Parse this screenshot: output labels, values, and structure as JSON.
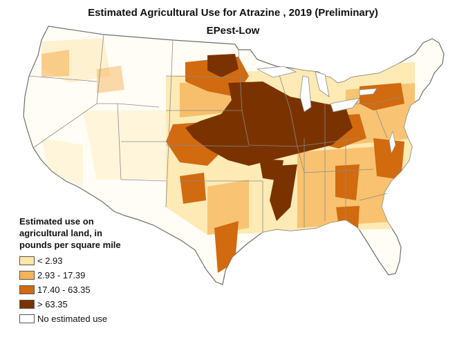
{
  "title": "Estimated Agricultural Use for Atrazine , 2019 (Preliminary)",
  "subtitle": "EPest-Low",
  "legend": {
    "title_lines": [
      "Estimated use on",
      "agricultural land, in",
      "pounds per square mile"
    ],
    "items": [
      {
        "label": "< 2.93",
        "color": "#fde6a8"
      },
      {
        "label": "2.93 - 17.39",
        "color": "#f5b459"
      },
      {
        "label": "17.40 - 63.35",
        "color": "#d26a10"
      },
      {
        "label": "> 63.35",
        "color": "#7a3300"
      },
      {
        "label": "No estimated use",
        "color": "#ffffff"
      }
    ]
  },
  "colors": {
    "state_border": "#8a8a8a",
    "outline": "#6e6e6e",
    "low": "#fde6a8",
    "lowmid": "#f5b459",
    "mid": "#d26a10",
    "high": "#7a3300"
  }
}
